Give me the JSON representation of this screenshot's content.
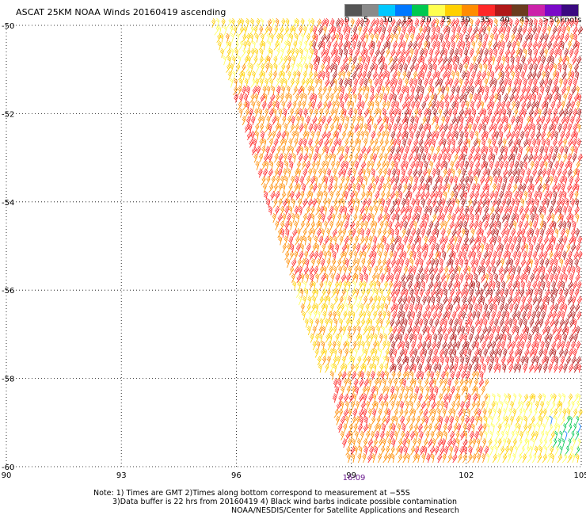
{
  "title": "ASCAT 25KM NOAA Winds 20160419 ascending",
  "legend": {
    "colors": [
      "#555555",
      "#8a8a8a",
      "#00c8ff",
      "#0078ff",
      "#00c850",
      "#ffff50",
      "#ffd000",
      "#ff8c00",
      "#ff2828",
      "#b01818",
      "#6b3c1e",
      "#cc22aa",
      "#7a0ac8",
      "#3a0a80"
    ],
    "ticks": [
      "0",
      "5",
      "10",
      "15",
      "20",
      "25",
      "30",
      "35",
      "40",
      "45",
      ">50"
    ],
    "unit": "knots"
  },
  "chart_data": {
    "type": "scatter",
    "title": "ASCAT 25KM NOAA Winds 20160419 ascending",
    "xlabel": "",
    "ylabel": "",
    "xlim": [
      90,
      105
    ],
    "ylim": [
      -60,
      -50
    ],
    "x_ticks": [
      "90",
      "93",
      "96",
      "99",
      "102",
      "105"
    ],
    "y_ticks": [
      "-50",
      "-52",
      "-54",
      "-56",
      "-58",
      "-60"
    ],
    "grid": true,
    "swath_boundary": [
      [
        95.3,
        -50
      ],
      [
        98.9,
        -60
      ]
    ],
    "wind_regions": [
      {
        "lon_range": [
          95.3,
          99.5
        ],
        "lat_range": [
          -51.5,
          -50
        ],
        "knots": 27
      },
      {
        "lon_range": [
          98,
          105
        ],
        "lat_range": [
          -51.5,
          -50
        ],
        "knots": 38
      },
      {
        "lon_range": [
          95.5,
          100
        ],
        "lat_range": [
          -56,
          -51.5
        ],
        "knots": 34
      },
      {
        "lon_range": [
          100,
          105
        ],
        "lat_range": [
          -56,
          -51.5
        ],
        "knots": 38
      },
      {
        "lon_range": [
          97,
          100
        ],
        "lat_range": [
          -58,
          -56
        ],
        "knots": 28
      },
      {
        "lon_range": [
          100,
          105
        ],
        "lat_range": [
          -58,
          -56
        ],
        "knots": 40
      },
      {
        "lon_range": [
          98.5,
          102.5
        ],
        "lat_range": [
          -60,
          -58
        ],
        "knots": 34
      },
      {
        "lon_range": [
          102.5,
          105
        ],
        "lat_range": [
          -60,
          -58.5
        ],
        "knots": 24
      },
      {
        "lon_range": [
          104.2,
          105
        ],
        "lat_range": [
          -59.9,
          -58.9
        ],
        "knots": 18
      }
    ],
    "time_labels": [
      {
        "lon": 99,
        "text": "16:09"
      }
    ]
  },
  "notes": [
    "Note: 1) Times are GMT 2)Times along bottom correspond to measurement at −55S",
    "3)Data buffer is 22 hrs from 20160419 4) Black wind barbs indicate possible contamination",
    "NOAA/NESDIS/Center for Satellite Applications and Research"
  ]
}
